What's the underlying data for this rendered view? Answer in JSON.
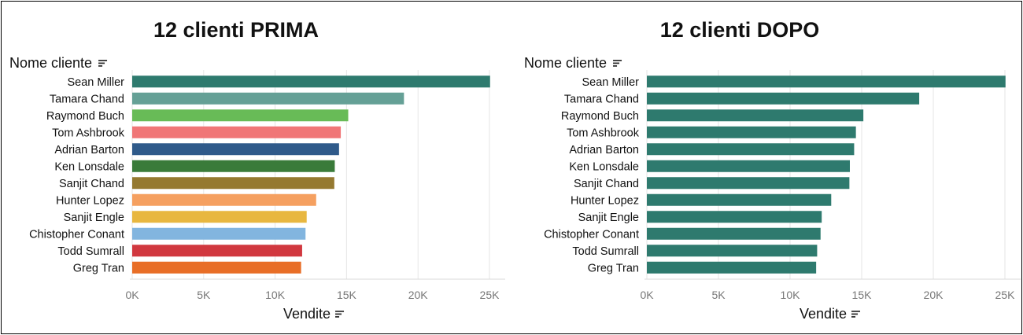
{
  "chart_data": [
    {
      "type": "bar",
      "title": "12 clienti PRIMA",
      "xlabel": "Vendite",
      "ylabel": "Nome cliente",
      "xlim": [
        0,
        25000
      ],
      "x_ticks": [
        "0K",
        "5K",
        "10K",
        "15K",
        "20K",
        "25K"
      ],
      "x_tick_values": [
        0,
        5000,
        10000,
        15000,
        20000,
        25000
      ],
      "categories": [
        "Sean Miller",
        "Tamara Chand",
        "Raymond Buch",
        "Tom Ashbrook",
        "Adrian Barton",
        "Ken Lonsdale",
        "Sanjit Chand",
        "Hunter Lopez",
        "Sanjit Engle",
        "Chistopher Conant",
        "Todd Sumrall",
        "Greg Tran"
      ],
      "values": [
        25043,
        19017,
        15117,
        14596,
        14474,
        14175,
        14142,
        12873,
        12209,
        12129,
        11891,
        11820
      ],
      "colors": [
        "#2e7a6e",
        "#65a096",
        "#68bb57",
        "#f07677",
        "#2f5a8a",
        "#3a7b3a",
        "#957930",
        "#f5a060",
        "#e8b740",
        "#82b5df",
        "#d1383f",
        "#e86e27"
      ],
      "grid": true,
      "sort_icon": "sort-descending-icon"
    },
    {
      "type": "bar",
      "title": "12 clienti DOPO",
      "xlabel": "Vendite",
      "ylabel": "Nome cliente",
      "xlim": [
        0,
        25000
      ],
      "x_ticks": [
        "0K",
        "5K",
        "10K",
        "15K",
        "20K",
        "25K"
      ],
      "x_tick_values": [
        0,
        5000,
        10000,
        15000,
        20000,
        25000
      ],
      "categories": [
        "Sean Miller",
        "Tamara Chand",
        "Raymond Buch",
        "Tom Ashbrook",
        "Adrian Barton",
        "Ken Lonsdale",
        "Sanjit Chand",
        "Hunter Lopez",
        "Sanjit Engle",
        "Chistopher Conant",
        "Todd Sumrall",
        "Greg Tran"
      ],
      "values": [
        25043,
        19017,
        15117,
        14596,
        14474,
        14175,
        14142,
        12873,
        12209,
        12129,
        11891,
        11820
      ],
      "colors": [
        "#2e7a6e",
        "#2e7a6e",
        "#2e7a6e",
        "#2e7a6e",
        "#2e7a6e",
        "#2e7a6e",
        "#2e7a6e",
        "#2e7a6e",
        "#2e7a6e",
        "#2e7a6e",
        "#2e7a6e",
        "#2e7a6e"
      ],
      "grid": true,
      "sort_icon": "sort-descending-icon"
    }
  ]
}
